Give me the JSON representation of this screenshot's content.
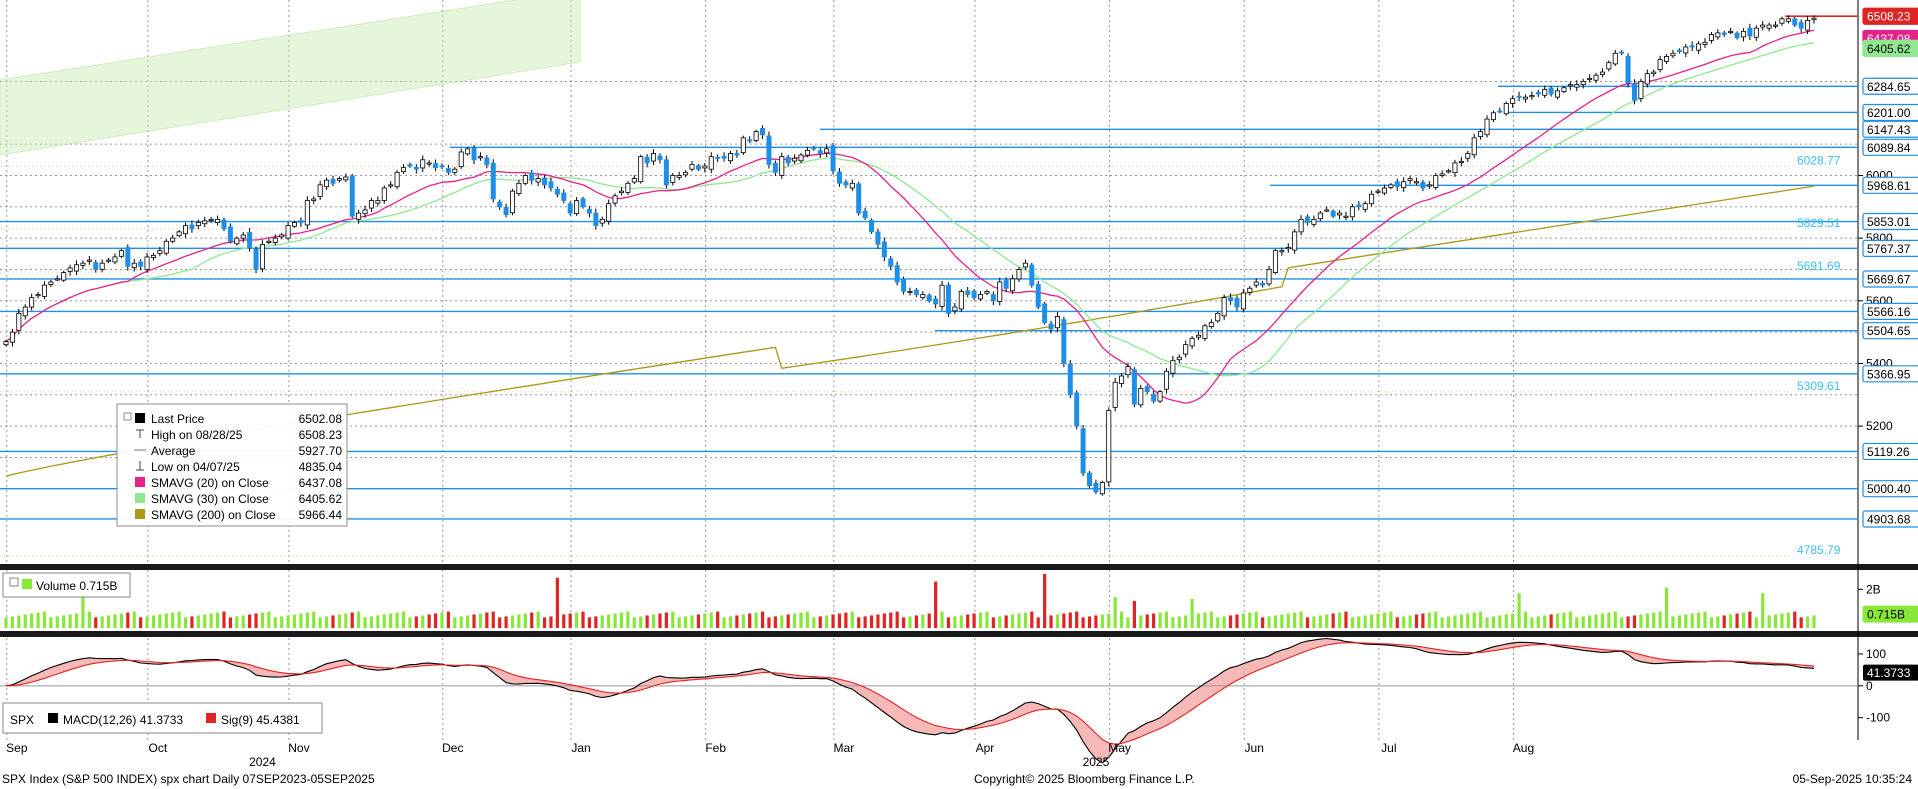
{
  "chart_data": {
    "type": "candlestick",
    "ticker": "SPX",
    "ylim": [
      4760,
      6560
    ],
    "y_ticks": [
      5200,
      5400,
      5600,
      5800,
      6000
    ],
    "months": [
      {
        "label": "Sep",
        "idx": 2
      },
      {
        "label": "Oct",
        "idx": 24
      },
      {
        "label": "Nov",
        "idx": 46
      },
      {
        "label": "Dec",
        "idx": 70
      },
      {
        "label": "Jan",
        "idx": 90
      },
      {
        "label": "Feb",
        "idx": 111
      },
      {
        "label": "Mar",
        "idx": 131
      },
      {
        "label": "Apr",
        "idx": 153
      },
      {
        "label": "May",
        "idx": 174
      },
      {
        "label": "Jun",
        "idx": 195
      },
      {
        "label": "Jul",
        "idx": 216
      },
      {
        "label": "Aug",
        "idx": 237
      }
    ],
    "years": [
      {
        "label": "2024",
        "idx": 40
      },
      {
        "label": "2025",
        "idx": 170
      }
    ],
    "closes": [
      5470,
      5500,
      5560,
      5580,
      5610,
      5620,
      5650,
      5660,
      5670,
      5690,
      5705,
      5715,
      5720,
      5730,
      5700,
      5720,
      5730,
      5740,
      5760,
      5710,
      5720,
      5710,
      5740,
      5745,
      5760,
      5790,
      5800,
      5820,
      5840,
      5830,
      5850,
      5855,
      5860,
      5860,
      5830,
      5790,
      5800,
      5810,
      5770,
      5700,
      5780,
      5790,
      5800,
      5810,
      5840,
      5850,
      5850,
      5920,
      5925,
      5970,
      5985,
      5975,
      5990,
      5995,
      5870,
      5880,
      5890,
      5920,
      5920,
      5960,
      5970,
      6010,
      6025,
      6030,
      6020,
      6050,
      6040,
      6025,
      6030,
      6010,
      6020,
      6075,
      6085,
      6050,
      6060,
      6035,
      5925,
      5900,
      5875,
      5950,
      5975,
      6000,
      5985,
      5990,
      5970,
      5960,
      5940,
      5920,
      5880,
      5920,
      5900,
      5880,
      5840,
      5860,
      5910,
      5935,
      5950,
      5975,
      5990,
      6060,
      6040,
      6070,
      6050,
      5970,
      6000,
      6000,
      6010,
      6035,
      6020,
      6030,
      6060,
      6055,
      6055,
      6070,
      6065,
      6120,
      6110,
      6140,
      6130,
      6035,
      6010,
      6060,
      6040,
      6055,
      6065,
      6080,
      6085,
      6070,
      6085,
      6015,
      5975,
      5970,
      5975,
      5880,
      5865,
      5820,
      5780,
      5740,
      5710,
      5660,
      5630,
      5630,
      5620,
      5620,
      5600,
      5590,
      5650,
      5560,
      5580,
      5630,
      5620,
      5610,
      5620,
      5630,
      5600,
      5660,
      5640,
      5670,
      5700,
      5720,
      5650,
      5580,
      5530,
      5510,
      5550,
      5400,
      5300,
      5200,
      5050,
      5010,
      4990,
      5020,
      5250,
      5340,
      5360,
      5390,
      5270,
      5320,
      5310,
      5280,
      5310,
      5375,
      5410,
      5420,
      5460,
      5480,
      5490,
      5520,
      5530,
      5560,
      5610,
      5600,
      5580,
      5625,
      5640,
      5660,
      5650,
      5700,
      5760,
      5760,
      5770,
      5820,
      5860,
      5850,
      5860,
      5880,
      5890,
      5870,
      5880,
      5870,
      5900,
      5900,
      5910,
      5940,
      5950,
      5960,
      5970,
      5965,
      5980,
      5990,
      5980,
      5960,
      5970,
      6000,
      6005,
      6015,
      6040,
      6045,
      6070,
      6120,
      6140,
      6180,
      6200,
      6205,
      6230,
      6245,
      6250,
      6250,
      6255,
      6260,
      6275,
      6260,
      6270,
      6280,
      6290,
      6290,
      6300,
      6310,
      6320,
      6330,
      6360,
      6390,
      6390,
      6295,
      6240,
      6300,
      6325,
      6330,
      6370,
      6380,
      6390,
      6395,
      6410,
      6410,
      6420,
      6425,
      6450,
      6455,
      6450,
      6460,
      6440,
      6460,
      6445,
      6470,
      6480,
      6480,
      6480,
      6500,
      6500,
      6480,
      6470,
      6495,
      6502
    ],
    "sma20_label": "SMAVG (20) on Close",
    "sma30_label": "SMAVG (30) on Close",
    "sma200_label": "SMAVG (200) on Close",
    "right_labels": [
      {
        "text": "6508.23",
        "value": 6508.23,
        "style": "red"
      },
      {
        "text": "6437.08",
        "value": 6437.08,
        "style": "pink"
      },
      {
        "text": "6405.62",
        "value": 6405.62,
        "style": "green"
      },
      {
        "text": "6284.65",
        "value": 6284.65,
        "style": "line"
      },
      {
        "text": "6201.00",
        "value": 6201.0,
        "style": "line"
      },
      {
        "text": "6147.43",
        "value": 6147.43,
        "style": "line"
      },
      {
        "text": "6089.84",
        "value": 6089.84,
        "style": "line"
      },
      {
        "text": "5968.61",
        "value": 5968.61,
        "style": "line"
      },
      {
        "text": "5853.01",
        "value": 5853.01,
        "style": "line"
      },
      {
        "text": "5767.37",
        "value": 5767.37,
        "style": "line"
      },
      {
        "text": "5669.67",
        "value": 5669.67,
        "style": "line"
      },
      {
        "text": "5566.16",
        "value": 5566.16,
        "style": "line"
      },
      {
        "text": "5504.65",
        "value": 5504.65,
        "style": "line"
      },
      {
        "text": "5366.95",
        "value": 5366.95,
        "style": "line"
      },
      {
        "text": "5119.26",
        "value": 5119.26,
        "style": "line"
      },
      {
        "text": "5000.40",
        "value": 5000.4,
        "style": "line"
      },
      {
        "text": "4903.68",
        "value": 4903.68,
        "style": "line"
      }
    ],
    "fib_labels": [
      {
        "text": "6028.77",
        "value": 6028.77
      },
      {
        "text": "5829.51",
        "value": 5829.51
      },
      {
        "text": "5691.69",
        "value": 5691.69
      },
      {
        "text": "5309.61",
        "value": 5309.61
      },
      {
        "text": "4785.79",
        "value": 4785.79
      }
    ],
    "legend": {
      "rows": [
        {
          "label": "Last Price",
          "value": "6502.08",
          "marker": "#000000"
        },
        {
          "label": "High on 08/28/25",
          "value": "6508.23",
          "marker": "high"
        },
        {
          "label": "Average",
          "value": "5927.70",
          "marker": "avg"
        },
        {
          "label": "Low on 04/07/25",
          "value": "4835.04",
          "marker": "low"
        },
        {
          "label": "SMAVG (20)  on Close",
          "value": "6437.08",
          "marker": "#e8208a"
        },
        {
          "label": "SMAVG (30)  on Close",
          "value": "6405.62",
          "marker": "#8fe88f"
        },
        {
          "label": "SMAVG (200)  on Close",
          "value": "5966.44",
          "marker": "#a89a18"
        }
      ]
    },
    "volume": {
      "legend_label": "Volume 0.715B",
      "tick_label": "2B",
      "last_label": "0.715B",
      "last_value": 0.715,
      "spikes": [
        {
          "idx": 12,
          "v": 2.0
        },
        {
          "idx": 86,
          "v": 2.6
        },
        {
          "idx": 145,
          "v": 2.4
        },
        {
          "idx": 162,
          "v": 2.8
        },
        {
          "idx": 173,
          "v": 1.6
        },
        {
          "idx": 185,
          "v": 1.5
        },
        {
          "idx": 236,
          "v": 1.8
        },
        {
          "idx": 259,
          "v": 2.1
        },
        {
          "idx": 274,
          "v": 1.8
        },
        {
          "idx": 176,
          "v": 1.4
        }
      ]
    },
    "macd": {
      "label_ticker": "SPX",
      "macd_label": "MACD(12,26)",
      "macd_value": "41.3733",
      "sig_label": "Sig(9)",
      "sig_value": "45.4381",
      "last_label": "41.3733",
      "ticks": [
        "100",
        "0",
        "-100"
      ],
      "ylim": [
        -170,
        150
      ]
    }
  },
  "footer": {
    "left": "SPX Index (S&P 500 INDEX) spx chart  Daily 07SEP2023-05SEP2025",
    "center": "Copyright© 2025 Bloomberg Finance L.P.",
    "right": "05-Sep-2025 10:35:24"
  },
  "colors": {
    "candle_up": "#ffffff",
    "candle_down": "#1e8fe8",
    "sma20": "#e8208a",
    "sma30": "#8fe88f",
    "sma200": "#a89a18",
    "level_line": "#1e8fe8",
    "vol_up": "#88e83a",
    "vol_down": "#e02424"
  }
}
